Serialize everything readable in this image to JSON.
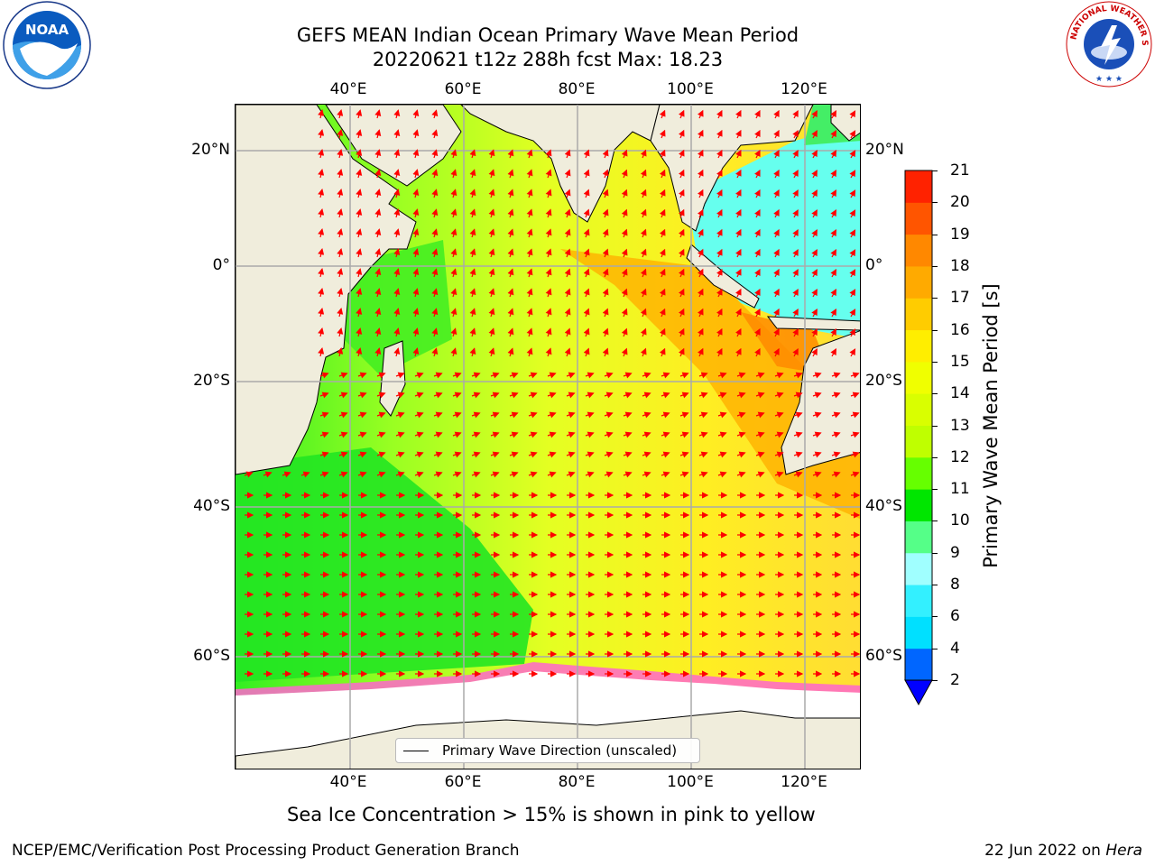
{
  "title": {
    "line1": "GEFS MEAN Indian Ocean Primary Wave Mean Period",
    "line2": "20220621 t12z 288h fcst   Max: 18.23"
  },
  "map": {
    "lon_ticks": [
      "40°E",
      "60°E",
      "80°E",
      "100°E",
      "120°E"
    ],
    "lat_ticks": [
      "20°N",
      "0°",
      "20°S",
      "40°S",
      "60°S"
    ],
    "legend_label": "Primary Wave Direction (unscaled)",
    "colors": {
      "land": "#f0eddc",
      "ice": "#ffffff",
      "arrow": "#ff0000",
      "grid": "#b0b0b0"
    }
  },
  "colorbar": {
    "label": "Primary Wave Mean Period [s]",
    "ticks": [
      "2",
      "4",
      "6",
      "8",
      "9",
      "10",
      "11",
      "12",
      "13",
      "14",
      "15",
      "16",
      "17",
      "18",
      "19",
      "20",
      "21"
    ],
    "colors": [
      "#0066ff",
      "#00e0ff",
      "#33f0ff",
      "#a0ffff",
      "#55ff88",
      "#00e600",
      "#66ff00",
      "#bfff00",
      "#d9ff00",
      "#f0ff00",
      "#ffee00",
      "#ffcc00",
      "#ffaa00",
      "#ff8800",
      "#ff5500",
      "#ff2200"
    ],
    "under_color": "#0000ff"
  },
  "note": "Sea Ice Concentration > 15% is shown in pink to yellow",
  "footer": {
    "left": "NCEP/EMC/Verification Post Processing Product Generation Branch",
    "date": "22 Jun 2022 on ",
    "machine": "Hera"
  },
  "logos": {
    "left": "noaa-logo",
    "left_text": "NOAA",
    "right": "national-weather-service-logo",
    "right_text": "NATIONAL WEATHER SERVICE"
  }
}
